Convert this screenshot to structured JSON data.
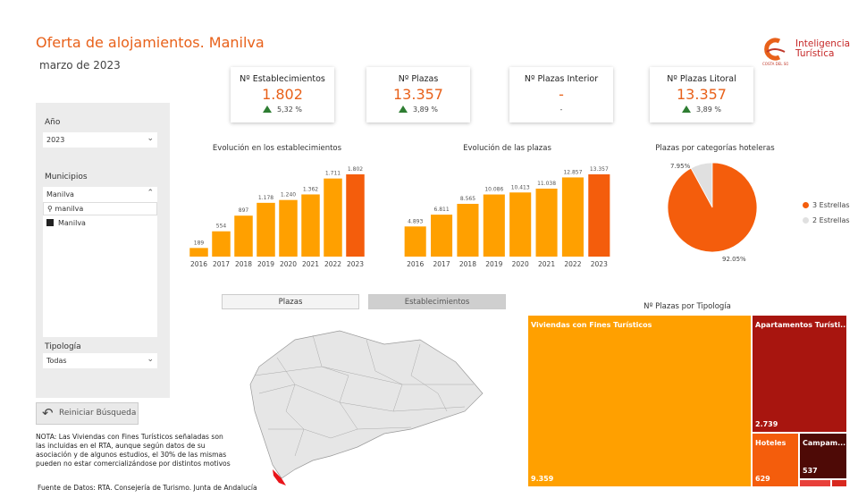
{
  "header": {
    "title": "Oferta de alojamientos. Manilva",
    "subtitle": "marzo de 2023",
    "logo_text": "Inteligencia Turística",
    "logo_small": "COSTA DEL SOL MÁLAGA"
  },
  "filters": {
    "year_label": "Año",
    "year_value": "2023",
    "municipios_label": "Municipios",
    "municipios_value": "Manilva",
    "search_value": "manilva",
    "list_items": [
      "Manilva"
    ],
    "tipologia_label": "Tipología",
    "tipologia_value": "Todas"
  },
  "reset_label": "Reiniciar Búsqueda",
  "note": "NOTA: Las Viviendas con Fines Turísticos señaladas son las incluidas en el RTA, aunque según datos de su asociación y de algunos estudios, el 30% de las mismas pueden no estar comercializándose por distintos motivos",
  "source": "Fuente de Datos: RTA. Consejería de Turismo. Junta de Andalucía",
  "kpis": [
    {
      "label": "Nº Establecimientos",
      "value": "1.802",
      "change": "5,32 %",
      "trend": "up"
    },
    {
      "label": "Nº Plazas",
      "value": "13.357",
      "change": "3,89 %",
      "trend": "up"
    },
    {
      "label": "Nº Plazas Interior",
      "value": "-",
      "change": "-",
      "trend": "none"
    },
    {
      "label": "Nº Plazas Litoral",
      "value": "13.357",
      "change": "3,89 %",
      "trend": "up"
    }
  ],
  "tabs": [
    "Plazas",
    "Establecimientos"
  ],
  "colors": {
    "accent": "#e8611a",
    "bar": "#ffa000",
    "bar_current": "#f45d0c",
    "gray": "#e0e0e0"
  },
  "chart_data": [
    {
      "type": "bar",
      "title": "Evolución en los establecimientos",
      "categories": [
        "2016",
        "2017",
        "2018",
        "2019",
        "2020",
        "2021",
        "2022",
        "2023"
      ],
      "values": [
        189,
        554,
        897,
        1178,
        1240,
        1362,
        1711,
        1802
      ],
      "labels": [
        "189",
        "554",
        "897",
        "1.178",
        "1.240",
        "1.362",
        "1.711",
        "1.802"
      ]
    },
    {
      "type": "bar",
      "title": "Evolución de las plazas",
      "categories": [
        "2016",
        "2017",
        "2018",
        "2019",
        "2020",
        "2021",
        "2022",
        "2023"
      ],
      "values": [
        4893,
        6811,
        8565,
        10086,
        10413,
        11038,
        12857,
        13357
      ],
      "labels": [
        "4.893",
        "6.811",
        "8.565",
        "10.086",
        "10.413",
        "11.038",
        "12.857",
        "13.357"
      ]
    },
    {
      "type": "pie",
      "title": "Plazas por categorías hoteleras",
      "slices": [
        {
          "name": "3 Estrellas",
          "value": 92.05,
          "label": "92.05%",
          "color": "#f45d0c"
        },
        {
          "name": "2 Estrellas",
          "value": 7.95,
          "label": "7.95%",
          "color": "#e0e0e0"
        }
      ],
      "legend": "right"
    },
    {
      "type": "treemap",
      "title": "Nº Plazas por Tipología",
      "items": [
        {
          "name": "Viviendas con Fines Turísticos",
          "value": "9.359",
          "color": "#ffa000"
        },
        {
          "name": "Apartamentos Turísti...",
          "value": "2.739",
          "color": "#a8150f"
        },
        {
          "name": "Hoteles",
          "value": "629",
          "color": "#f45d0c"
        },
        {
          "name": "Campam...",
          "value": "537",
          "color": "#4e0a06"
        }
      ]
    }
  ]
}
